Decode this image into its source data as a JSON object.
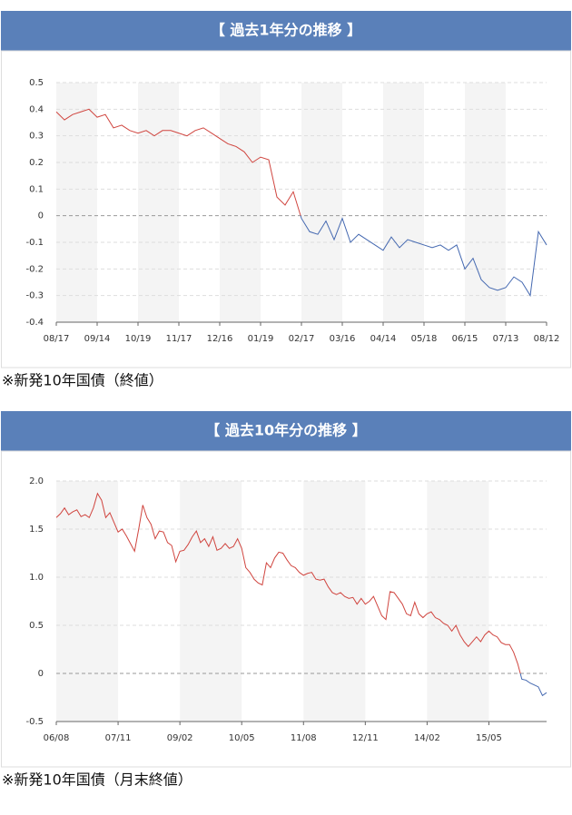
{
  "chart_data": [
    {
      "type": "line",
      "title": "【 過去1年分の推移 】",
      "note": "※新発10年国債（終値）",
      "color_above": "#d0453f",
      "color_below": "#4468b0",
      "zero_line": true,
      "grid": true,
      "bands": true,
      "xlim": [
        0,
        60
      ],
      "xticks": [
        {
          "value": 0,
          "label": "08/17"
        },
        {
          "value": 5,
          "label": "09/14"
        },
        {
          "value": 10,
          "label": "10/19"
        },
        {
          "value": 15,
          "label": "11/17"
        },
        {
          "value": 20,
          "label": "12/16"
        },
        {
          "value": 25,
          "label": "01/19"
        },
        {
          "value": 30,
          "label": "02/17"
        },
        {
          "value": 35,
          "label": "03/16"
        },
        {
          "value": 40,
          "label": "04/14"
        },
        {
          "value": 45,
          "label": "05/18"
        },
        {
          "value": 50,
          "label": "06/15"
        },
        {
          "value": 55,
          "label": "07/13"
        },
        {
          "value": 60,
          "label": "08/12"
        }
      ],
      "ylim": [
        -0.4,
        0.5
      ],
      "yticks": [
        0.5,
        0.4,
        0.3,
        0.2,
        0.1,
        0,
        -0.1,
        -0.2,
        -0.3,
        -0.4
      ],
      "values": [
        0.39,
        0.36,
        0.38,
        0.39,
        0.4,
        0.37,
        0.38,
        0.33,
        0.34,
        0.32,
        0.31,
        0.32,
        0.3,
        0.32,
        0.32,
        0.31,
        0.3,
        0.32,
        0.33,
        0.31,
        0.29,
        0.27,
        0.26,
        0.24,
        0.2,
        0.22,
        0.21,
        0.07,
        0.04,
        0.09,
        -0.01,
        -0.06,
        -0.07,
        -0.02,
        -0.09,
        -0.01,
        -0.1,
        -0.07,
        -0.09,
        -0.11,
        -0.13,
        -0.08,
        -0.12,
        -0.09,
        -0.1,
        -0.11,
        -0.12,
        -0.11,
        -0.13,
        -0.11,
        -0.2,
        -0.16,
        -0.24,
        -0.27,
        -0.28,
        -0.27,
        -0.23,
        -0.25,
        -0.3,
        -0.06,
        -0.11
      ]
    },
    {
      "type": "line",
      "title": "【 過去10年分の推移 】",
      "note": "※新発10年国債（月末終値）",
      "color_above": "#d0453f",
      "color_below": "#4468b0",
      "zero_line": true,
      "grid": true,
      "bands": true,
      "xlim": [
        0,
        119
      ],
      "xticks": [
        {
          "value": 0,
          "label": "06/08"
        },
        {
          "value": 15,
          "label": "07/11"
        },
        {
          "value": 30,
          "label": "09/02"
        },
        {
          "value": 45,
          "label": "10/05"
        },
        {
          "value": 60,
          "label": "11/08"
        },
        {
          "value": 75,
          "label": "12/11"
        },
        {
          "value": 90,
          "label": "14/02"
        },
        {
          "value": 105,
          "label": "15/05"
        }
      ],
      "ylim": [
        -0.5,
        2
      ],
      "yticks": [
        {
          "value": 2,
          "label": "2.0"
        },
        1.5,
        {
          "value": 1,
          "label": "1.0"
        },
        0.5,
        0,
        -0.5
      ],
      "values": [
        1.62,
        1.66,
        1.72,
        1.65,
        1.68,
        1.7,
        1.63,
        1.65,
        1.62,
        1.72,
        1.87,
        1.8,
        1.62,
        1.67,
        1.57,
        1.47,
        1.5,
        1.43,
        1.35,
        1.27,
        1.5,
        1.75,
        1.62,
        1.55,
        1.4,
        1.48,
        1.47,
        1.36,
        1.33,
        1.16,
        1.27,
        1.28,
        1.34,
        1.42,
        1.48,
        1.36,
        1.4,
        1.32,
        1.42,
        1.28,
        1.3,
        1.35,
        1.3,
        1.32,
        1.4,
        1.3,
        1.1,
        1.05,
        0.98,
        0.94,
        0.92,
        1.15,
        1.1,
        1.2,
        1.26,
        1.25,
        1.18,
        1.12,
        1.1,
        1.05,
        1.02,
        1.04,
        1.05,
        0.98,
        0.97,
        0.98,
        0.9,
        0.84,
        0.82,
        0.84,
        0.8,
        0.78,
        0.79,
        0.72,
        0.78,
        0.72,
        0.75,
        0.8,
        0.7,
        0.6,
        0.56,
        0.85,
        0.84,
        0.78,
        0.72,
        0.62,
        0.6,
        0.74,
        0.62,
        0.58,
        0.62,
        0.64,
        0.58,
        0.56,
        0.52,
        0.5,
        0.44,
        0.5,
        0.4,
        0.33,
        0.28,
        0.33,
        0.38,
        0.33,
        0.4,
        0.44,
        0.4,
        0.38,
        0.32,
        0.3,
        0.3,
        0.22,
        0.1,
        -0.06,
        -0.07,
        -0.1,
        -0.12,
        -0.14,
        -0.23,
        -0.2
      ]
    }
  ]
}
